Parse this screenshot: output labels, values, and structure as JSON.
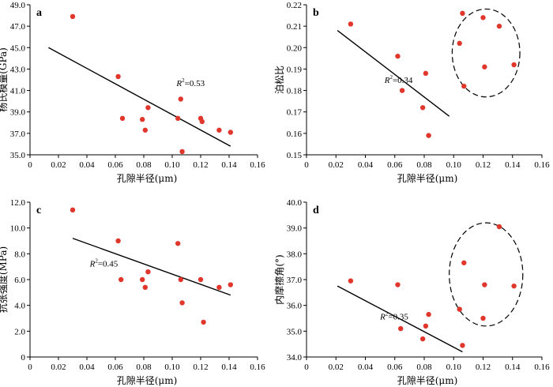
{
  "chart_data": [
    {
      "type": "scatter",
      "panel": "a",
      "xlabel": "孔隙半径(μm)",
      "ylabel": "杨氏模量(GPa)",
      "xlim": [
        0,
        0.16
      ],
      "ylim": [
        35,
        49
      ],
      "xticks": [
        0,
        0.02,
        0.04,
        0.06,
        0.08,
        0.1,
        0.12,
        0.14,
        0.16
      ],
      "xtick_labels": [
        "0",
        "0.02",
        "0.04",
        "0.06",
        "0.08",
        "0.10",
        "0.12",
        "0.14",
        "0.16"
      ],
      "yticks": [
        35,
        37,
        39,
        41,
        43,
        45,
        47,
        49
      ],
      "ytick_labels": [
        "35.0",
        "37.0",
        "39.0",
        "41.0",
        "43.0",
        "45.0",
        "47.0",
        "49.0"
      ],
      "points": [
        {
          "x": 0.03,
          "y": 47.9
        },
        {
          "x": 0.062,
          "y": 42.3
        },
        {
          "x": 0.065,
          "y": 38.4
        },
        {
          "x": 0.079,
          "y": 38.3
        },
        {
          "x": 0.081,
          "y": 37.3
        },
        {
          "x": 0.083,
          "y": 39.4
        },
        {
          "x": 0.104,
          "y": 38.4
        },
        {
          "x": 0.106,
          "y": 40.2
        },
        {
          "x": 0.107,
          "y": 35.3
        },
        {
          "x": 0.12,
          "y": 38.4
        },
        {
          "x": 0.121,
          "y": 38.1
        },
        {
          "x": 0.133,
          "y": 37.3
        },
        {
          "x": 0.141,
          "y": 37.1
        }
      ],
      "fit": {
        "x1": 0.013,
        "y1": 45.0,
        "x2": 0.141,
        "y2": 35.8
      },
      "r2_label": {
        "prefix": "R",
        "sup": "2",
        "value": "=0.53",
        "x": 0.103,
        "y": 41.4
      },
      "ellipse": null
    },
    {
      "type": "scatter",
      "panel": "b",
      "xlabel": "孔隙半径(μm)",
      "ylabel": "泊松比",
      "xlim": [
        0,
        0.16
      ],
      "ylim": [
        0.15,
        0.22
      ],
      "xticks": [
        0,
        0.02,
        0.04,
        0.06,
        0.08,
        0.1,
        0.12,
        0.14,
        0.16
      ],
      "xtick_labels": [
        "0",
        "0.02",
        "0.04",
        "0.06",
        "0.08",
        "0.10",
        "0.12",
        "0.14",
        "0.16"
      ],
      "yticks": [
        0.15,
        0.16,
        0.17,
        0.18,
        0.19,
        0.2,
        0.21,
        0.22
      ],
      "ytick_labels": [
        "0.15",
        "0.16",
        "0.17",
        "0.18",
        "0.19",
        "0.20",
        "0.21",
        "0.22"
      ],
      "points": [
        {
          "x": 0.03,
          "y": 0.211
        },
        {
          "x": 0.062,
          "y": 0.196
        },
        {
          "x": 0.065,
          "y": 0.18
        },
        {
          "x": 0.079,
          "y": 0.172
        },
        {
          "x": 0.081,
          "y": 0.188
        },
        {
          "x": 0.083,
          "y": 0.159
        },
        {
          "x": 0.104,
          "y": 0.202
        },
        {
          "x": 0.106,
          "y": 0.216
        },
        {
          "x": 0.107,
          "y": 0.182
        },
        {
          "x": 0.12,
          "y": 0.214
        },
        {
          "x": 0.121,
          "y": 0.191
        },
        {
          "x": 0.131,
          "y": 0.21
        },
        {
          "x": 0.141,
          "y": 0.192
        }
      ],
      "fit": {
        "x1": 0.021,
        "y1": 0.208,
        "x2": 0.097,
        "y2": 0.168
      },
      "r2_label": {
        "prefix": "R",
        "sup": "2",
        "value": "=0.34",
        "x": 0.053,
        "y": 0.1835
      },
      "ellipse": {
        "cx": 0.122,
        "cy": 0.1975,
        "rx": 0.023,
        "ry": 0.0205
      }
    },
    {
      "type": "scatter",
      "panel": "c",
      "xlabel": "孔隙半径(μm)",
      "ylabel": "抗张强度(MPa)",
      "xlim": [
        0,
        0.16
      ],
      "ylim": [
        0,
        12
      ],
      "xticks": [
        0,
        0.02,
        0.04,
        0.06,
        0.08,
        0.1,
        0.12,
        0.14,
        0.16
      ],
      "xtick_labels": [
        "0",
        "0.02",
        "0.04",
        "0.06",
        "0.08",
        "0.10",
        "0.12",
        "0.14",
        "0.16"
      ],
      "yticks": [
        0,
        2,
        4,
        6,
        8,
        10,
        12
      ],
      "ytick_labels": [
        "0",
        "2.0",
        "4.0",
        "6.0",
        "8.0",
        "10.0",
        "12.0"
      ],
      "points": [
        {
          "x": 0.03,
          "y": 11.4
        },
        {
          "x": 0.062,
          "y": 9.0
        },
        {
          "x": 0.064,
          "y": 6.0
        },
        {
          "x": 0.079,
          "y": 6.0
        },
        {
          "x": 0.081,
          "y": 5.4
        },
        {
          "x": 0.083,
          "y": 6.6
        },
        {
          "x": 0.104,
          "y": 8.8
        },
        {
          "x": 0.106,
          "y": 6.0
        },
        {
          "x": 0.107,
          "y": 4.2
        },
        {
          "x": 0.12,
          "y": 6.0
        },
        {
          "x": 0.122,
          "y": 2.7
        },
        {
          "x": 0.133,
          "y": 5.4
        },
        {
          "x": 0.141,
          "y": 5.6
        }
      ],
      "fit": {
        "x1": 0.03,
        "y1": 9.2,
        "x2": 0.141,
        "y2": 4.8
      },
      "r2_label": {
        "prefix": "R",
        "sup": "2",
        "value": "=0.45",
        "x": 0.042,
        "y": 7.0
      },
      "ellipse": null
    },
    {
      "type": "scatter",
      "panel": "d",
      "xlabel": "孔隙半径(μm)",
      "ylabel": "内摩擦角(°)",
      "xlim": [
        0,
        0.16
      ],
      "ylim": [
        34,
        40
      ],
      "xticks": [
        0,
        0.02,
        0.04,
        0.06,
        0.08,
        0.1,
        0.12,
        0.14,
        0.16
      ],
      "xtick_labels": [
        "0",
        "0.02",
        "0.04",
        "0.06",
        "0.08",
        "0.10",
        "0.12",
        "0.14",
        "0.16"
      ],
      "yticks": [
        34,
        35,
        36,
        37,
        38,
        39,
        40
      ],
      "ytick_labels": [
        "34.0",
        "35.0",
        "36.0",
        "37.0",
        "38.0",
        "39.0",
        "40.0"
      ],
      "points": [
        {
          "x": 0.03,
          "y": 36.95
        },
        {
          "x": 0.062,
          "y": 36.8
        },
        {
          "x": 0.064,
          "y": 35.1
        },
        {
          "x": 0.079,
          "y": 34.7
        },
        {
          "x": 0.081,
          "y": 35.2
        },
        {
          "x": 0.083,
          "y": 35.65
        },
        {
          "x": 0.104,
          "y": 35.85
        },
        {
          "x": 0.106,
          "y": 34.45
        },
        {
          "x": 0.107,
          "y": 37.65
        },
        {
          "x": 0.12,
          "y": 35.5
        },
        {
          "x": 0.121,
          "y": 36.8
        },
        {
          "x": 0.131,
          "y": 39.05
        },
        {
          "x": 0.141,
          "y": 36.75
        }
      ],
      "fit": {
        "x1": 0.021,
        "y1": 36.75,
        "x2": 0.106,
        "y2": 34.2
      },
      "r2_label": {
        "prefix": "R",
        "sup": "2",
        "value": "=0.35",
        "x": 0.05,
        "y": 35.45
      },
      "ellipse": {
        "cx": 0.122,
        "cy": 37.2,
        "rx": 0.025,
        "ry": 2.0
      }
    }
  ]
}
